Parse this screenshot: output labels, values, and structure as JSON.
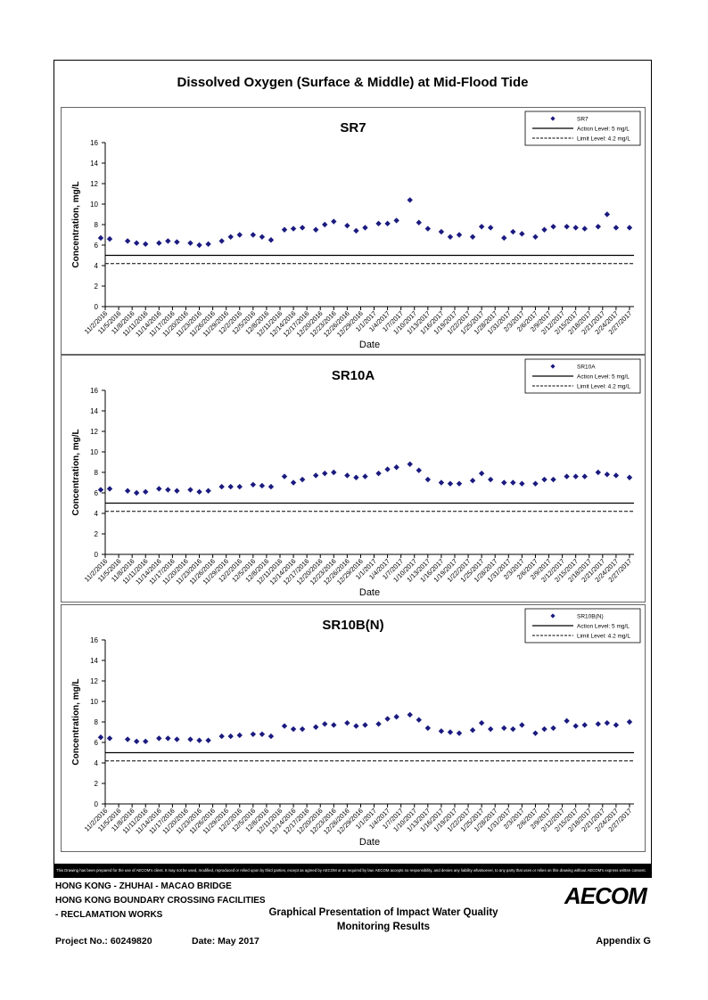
{
  "page": {
    "main_title": "Dissolved Oxygen (Surface & Middle) at Mid-Flood Tide",
    "disclaimer": "This Drawing has been prepared for the use of AECOM's client. It may not be used, modified, reproduced or relied upon by third parties, except as agreed by AECOM or as required by law. AECOM accepts no responsibility, and denies any liability whatsoever, to any party that uses or relies on this drawing without AECOM's express written consent.",
    "footer": {
      "line1": "HONG KONG - ZHUHAI - MACAO BRIDGE",
      "line2": "HONG KONG BOUNDARY CROSSING FACILITIES",
      "line3": "- RECLAMATION WORKS",
      "center_line1": "Graphical Presentation of Impact Water Quality",
      "center_line2": "Monitoring Results",
      "project": "Project No.: 60249820",
      "date": "Date: May 2017",
      "appendix": "Appendix G",
      "logo": "AECOM"
    },
    "colors": {
      "marker": "#1a1a80",
      "line": "#000000"
    }
  },
  "chart_data": [
    {
      "type": "scatter",
      "title": "SR7",
      "xlabel": "Date",
      "ylabel": "Concentration, mg/L",
      "ylim": [
        0,
        16
      ],
      "yticks": [
        0,
        2,
        4,
        6,
        8,
        10,
        12,
        14,
        16
      ],
      "x_ticks": [
        "11/2/2016",
        "11/5/2016",
        "11/8/2016",
        "11/11/2016",
        "11/14/2016",
        "11/17/2016",
        "11/20/2016",
        "11/23/2016",
        "11/26/2016",
        "11/29/2016",
        "12/2/2016",
        "12/5/2016",
        "12/8/2016",
        "12/11/2016",
        "12/14/2016",
        "12/17/2016",
        "12/20/2016",
        "12/23/2016",
        "12/26/2016",
        "12/29/2016",
        "1/1/2017",
        "1/4/2017",
        "1/7/2017",
        "1/10/2017",
        "1/13/2017",
        "1/16/2017",
        "1/19/2017",
        "1/22/2017",
        "1/25/2017",
        "1/28/2017",
        "1/31/2017",
        "2/3/2017",
        "2/6/2017",
        "2/9/2017",
        "2/12/2017",
        "2/15/2017",
        "2/18/2017",
        "2/21/2017",
        "2/24/2017",
        "2/27/2017"
      ],
      "x_range": [
        "11/2/2016",
        "2/28/2017"
      ],
      "legend_position": "top-right",
      "series": [
        {
          "name": "SR7",
          "kind": "markers",
          "x": [
            "11/1/2016",
            "11/3/2016",
            "11/7/2016",
            "11/9/2016",
            "11/11/2016",
            "11/14/2016",
            "11/16/2016",
            "11/18/2016",
            "11/21/2016",
            "11/23/2016",
            "11/25/2016",
            "11/28/2016",
            "11/30/2016",
            "12/2/2016",
            "12/5/2016",
            "12/7/2016",
            "12/9/2016",
            "12/12/2016",
            "12/14/2016",
            "12/16/2016",
            "12/19/2016",
            "12/21/2016",
            "12/23/2016",
            "12/26/2016",
            "12/28/2016",
            "12/30/2016",
            "1/2/2017",
            "1/4/2017",
            "1/6/2017",
            "1/9/2017",
            "1/11/2017",
            "1/13/2017",
            "1/16/2017",
            "1/18/2017",
            "1/20/2017",
            "1/23/2017",
            "1/25/2017",
            "1/27/2017",
            "1/30/2017",
            "2/1/2017",
            "2/3/2017",
            "2/6/2017",
            "2/8/2017",
            "2/10/2017",
            "2/13/2017",
            "2/15/2017",
            "2/17/2017",
            "2/20/2017",
            "2/22/2017",
            "2/24/2017",
            "2/27/2017"
          ],
          "y": [
            6.7,
            6.6,
            6.4,
            6.2,
            6.1,
            6.2,
            6.4,
            6.3,
            6.2,
            6.0,
            6.1,
            6.4,
            6.8,
            7.0,
            7.0,
            6.8,
            6.5,
            7.5,
            7.6,
            7.7,
            7.5,
            8.0,
            8.3,
            7.9,
            7.4,
            7.7,
            8.1,
            8.1,
            8.4,
            10.4,
            8.2,
            7.6,
            7.3,
            6.8,
            7.0,
            6.8,
            7.8,
            7.7,
            6.7,
            7.3,
            7.1,
            6.8,
            7.5,
            7.8,
            7.8,
            7.7,
            7.6,
            7.8,
            9.0,
            7.7,
            7.7
          ]
        },
        {
          "name": "Action Level: 5 mg/L",
          "kind": "solid-line",
          "y": 5
        },
        {
          "name": "Limit Level: 4.2 mg/L",
          "kind": "dashed-line",
          "y": 4.2
        }
      ]
    },
    {
      "type": "scatter",
      "title": "SR10A",
      "xlabel": "Date",
      "ylabel": "Concentration, mg/L",
      "ylim": [
        0,
        16
      ],
      "yticks": [
        0,
        2,
        4,
        6,
        8,
        10,
        12,
        14,
        16
      ],
      "x_ticks": [
        "11/2/2016",
        "11/5/2016",
        "11/8/2016",
        "11/11/2016",
        "11/14/2016",
        "11/17/2016",
        "11/20/2016",
        "11/23/2016",
        "11/26/2016",
        "11/29/2016",
        "12/2/2016",
        "12/5/2016",
        "12/8/2016",
        "12/11/2016",
        "12/14/2016",
        "12/17/2016",
        "12/20/2016",
        "12/23/2016",
        "12/26/2016",
        "12/29/2016",
        "1/1/2017",
        "1/4/2017",
        "1/7/2017",
        "1/10/2017",
        "1/13/2017",
        "1/16/2017",
        "1/19/2017",
        "1/22/2017",
        "1/25/2017",
        "1/28/2017",
        "1/31/2017",
        "2/3/2017",
        "2/6/2017",
        "2/9/2017",
        "2/12/2017",
        "2/15/2017",
        "2/18/2017",
        "2/21/2017",
        "2/24/2017",
        "2/27/2017"
      ],
      "x_range": [
        "11/2/2016",
        "2/28/2017"
      ],
      "legend_position": "top-right",
      "series": [
        {
          "name": "SR10A",
          "kind": "markers",
          "x": [
            "11/1/2016",
            "11/3/2016",
            "11/7/2016",
            "11/9/2016",
            "11/11/2016",
            "11/14/2016",
            "11/16/2016",
            "11/18/2016",
            "11/21/2016",
            "11/23/2016",
            "11/25/2016",
            "11/28/2016",
            "11/30/2016",
            "12/2/2016",
            "12/5/2016",
            "12/7/2016",
            "12/9/2016",
            "12/12/2016",
            "12/14/2016",
            "12/16/2016",
            "12/19/2016",
            "12/21/2016",
            "12/23/2016",
            "12/26/2016",
            "12/28/2016",
            "12/30/2016",
            "1/2/2017",
            "1/4/2017",
            "1/6/2017",
            "1/9/2017",
            "1/11/2017",
            "1/13/2017",
            "1/16/2017",
            "1/18/2017",
            "1/20/2017",
            "1/23/2017",
            "1/25/2017",
            "1/27/2017",
            "1/30/2017",
            "2/1/2017",
            "2/3/2017",
            "2/6/2017",
            "2/8/2017",
            "2/10/2017",
            "2/13/2017",
            "2/15/2017",
            "2/17/2017",
            "2/20/2017",
            "2/22/2017",
            "2/24/2017",
            "2/27/2017"
          ],
          "y": [
            6.3,
            6.4,
            6.2,
            6.0,
            6.1,
            6.4,
            6.3,
            6.2,
            6.3,
            6.1,
            6.2,
            6.6,
            6.6,
            6.6,
            6.8,
            6.7,
            6.6,
            7.6,
            7.0,
            7.3,
            7.7,
            7.9,
            8.0,
            7.7,
            7.5,
            7.6,
            7.9,
            8.3,
            8.5,
            8.8,
            8.2,
            7.3,
            7.0,
            6.9,
            6.9,
            7.2,
            7.9,
            7.3,
            7.0,
            7.0,
            6.9,
            6.9,
            7.3,
            7.3,
            7.6,
            7.6,
            7.6,
            8.0,
            7.8,
            7.7,
            7.5
          ]
        },
        {
          "name": "Action Level: 5 mg/L",
          "kind": "solid-line",
          "y": 5
        },
        {
          "name": "Limit Level: 4.2 mg/L",
          "kind": "dashed-line",
          "y": 4.2
        }
      ]
    },
    {
      "type": "scatter",
      "title": "SR10B(N)",
      "xlabel": "Date",
      "ylabel": "Concentration, mg/L",
      "ylim": [
        0,
        16
      ],
      "yticks": [
        0,
        2,
        4,
        6,
        8,
        10,
        12,
        14,
        16
      ],
      "x_ticks": [
        "11/2/2016",
        "11/5/2016",
        "11/8/2016",
        "11/11/2016",
        "11/14/2016",
        "11/17/2016",
        "11/20/2016",
        "11/23/2016",
        "11/26/2016",
        "11/29/2016",
        "12/2/2016",
        "12/5/2016",
        "12/8/2016",
        "12/11/2016",
        "12/14/2016",
        "12/17/2016",
        "12/20/2016",
        "12/23/2016",
        "12/26/2016",
        "12/29/2016",
        "1/1/2017",
        "1/4/2017",
        "1/7/2017",
        "1/10/2017",
        "1/13/2017",
        "1/16/2017",
        "1/19/2017",
        "1/22/2017",
        "1/25/2017",
        "1/28/2017",
        "1/31/2017",
        "2/3/2017",
        "2/6/2017",
        "2/9/2017",
        "2/12/2017",
        "2/15/2017",
        "2/18/2017",
        "2/21/2017",
        "2/24/2017",
        "2/27/2017"
      ],
      "x_range": [
        "11/2/2016",
        "2/28/2017"
      ],
      "legend_position": "top-right",
      "series": [
        {
          "name": "SR10B(N)",
          "kind": "markers",
          "x": [
            "11/1/2016",
            "11/3/2016",
            "11/7/2016",
            "11/9/2016",
            "11/11/2016",
            "11/14/2016",
            "11/16/2016",
            "11/18/2016",
            "11/21/2016",
            "11/23/2016",
            "11/25/2016",
            "11/28/2016",
            "11/30/2016",
            "12/2/2016",
            "12/5/2016",
            "12/7/2016",
            "12/9/2016",
            "12/12/2016",
            "12/14/2016",
            "12/16/2016",
            "12/19/2016",
            "12/21/2016",
            "12/23/2016",
            "12/26/2016",
            "12/28/2016",
            "12/30/2016",
            "1/2/2017",
            "1/4/2017",
            "1/6/2017",
            "1/9/2017",
            "1/11/2017",
            "1/13/2017",
            "1/16/2017",
            "1/18/2017",
            "1/20/2017",
            "1/23/2017",
            "1/25/2017",
            "1/27/2017",
            "1/30/2017",
            "2/1/2017",
            "2/3/2017",
            "2/6/2017",
            "2/8/2017",
            "2/10/2017",
            "2/13/2017",
            "2/15/2017",
            "2/17/2017",
            "2/20/2017",
            "2/22/2017",
            "2/24/2017",
            "2/27/2017"
          ],
          "y": [
            6.5,
            6.4,
            6.3,
            6.1,
            6.1,
            6.4,
            6.4,
            6.3,
            6.3,
            6.2,
            6.2,
            6.6,
            6.6,
            6.7,
            6.8,
            6.8,
            6.6,
            7.6,
            7.3,
            7.3,
            7.5,
            7.8,
            7.7,
            7.9,
            7.6,
            7.7,
            7.8,
            8.3,
            8.5,
            8.7,
            8.2,
            7.4,
            7.1,
            7.0,
            6.9,
            7.2,
            7.9,
            7.3,
            7.4,
            7.3,
            7.7,
            6.9,
            7.3,
            7.4,
            8.1,
            7.6,
            7.7,
            7.8,
            7.9,
            7.7,
            8.0
          ]
        },
        {
          "name": "Action Level: 5 mg/L",
          "kind": "solid-line",
          "y": 5
        },
        {
          "name": "Limit Level: 4.2 mg/L",
          "kind": "dashed-line",
          "y": 4.2
        }
      ]
    }
  ]
}
